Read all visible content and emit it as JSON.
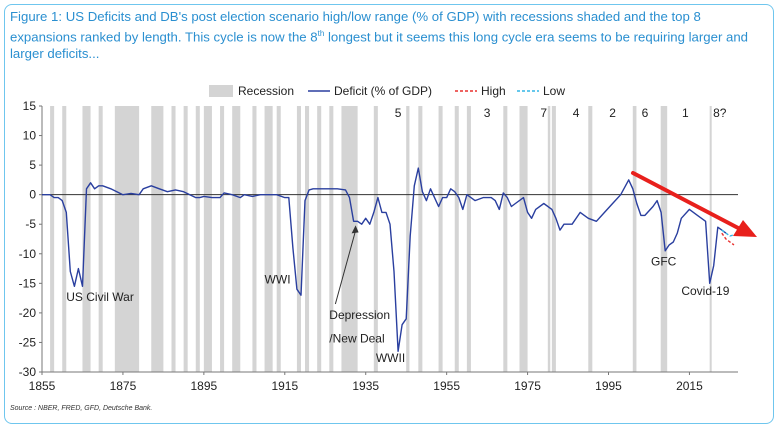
{
  "title": {
    "part1": "Figure 1: US Deficits and DB's post election scenario high/low range (% of GDP) with recessions shaded and the top 8 expansions ranked by length. This cycle is now the 8",
    "sup": "th",
    "part2": " longest but it seems this long cycle era seems to be requiring larger and larger deficits..."
  },
  "source": "Source : NBER, FRED, GFD, Deutsche Bank.",
  "colors": {
    "accent": "#2a8fd0",
    "line": "#2a3f9f",
    "high": "#e8312f",
    "low": "#33b5e5",
    "arrow": "#e8201c",
    "recession": "#d4d4d4"
  },
  "chart_data": {
    "type": "line",
    "title": "",
    "xlabel": "",
    "ylabel": "",
    "xlim": [
      1855,
      2027
    ],
    "ylim": [
      -30,
      15
    ],
    "xticks": [
      1855,
      1875,
      1895,
      1915,
      1935,
      1955,
      1975,
      1995,
      2015
    ],
    "yticks": [
      15,
      10,
      5,
      0,
      -5,
      -10,
      -15,
      -20,
      -25,
      -30
    ],
    "legend": [
      "Recession",
      "Deficit (% of GDP)",
      "High",
      "Low"
    ],
    "recessions": [
      [
        1857,
        1858
      ],
      [
        1860,
        1861
      ],
      [
        1865,
        1867
      ],
      [
        1869,
        1870
      ],
      [
        1873,
        1879
      ],
      [
        1882,
        1885
      ],
      [
        1887,
        1888
      ],
      [
        1890,
        1891
      ],
      [
        1893,
        1894
      ],
      [
        1895,
        1897
      ],
      [
        1899,
        1900
      ],
      [
        1902,
        1904
      ],
      [
        1907,
        1908
      ],
      [
        1910,
        1912
      ],
      [
        1913,
        1914
      ],
      [
        1918,
        1919
      ],
      [
        1920,
        1921
      ],
      [
        1923,
        1924
      ],
      [
        1926,
        1927
      ],
      [
        1929,
        1933
      ],
      [
        1937,
        1938
      ],
      [
        1945,
        1945.8
      ],
      [
        1948,
        1949
      ],
      [
        1953,
        1954
      ],
      [
        1957,
        1958
      ],
      [
        1960,
        1961
      ],
      [
        1969,
        1970
      ],
      [
        1973,
        1975
      ],
      [
        1980,
        1980.6
      ],
      [
        1981,
        1982
      ],
      [
        1990,
        1991
      ],
      [
        2001,
        2001.9
      ],
      [
        2007.9,
        2009.5
      ],
      [
        2020,
        2020.5
      ]
    ],
    "series": [
      {
        "name": "Deficit (% of GDP)",
        "x": [
          1855,
          1857,
          1858,
          1859,
          1860,
          1861,
          1862,
          1863,
          1864,
          1865,
          1866,
          1867,
          1868,
          1869,
          1870,
          1872,
          1875,
          1877,
          1879,
          1880,
          1882,
          1884,
          1886,
          1888,
          1890,
          1893,
          1894,
          1895,
          1897,
          1899,
          1900,
          1902,
          1904,
          1905,
          1907,
          1909,
          1911,
          1913,
          1915,
          1916,
          1917,
          1918,
          1919,
          1920,
          1921,
          1922,
          1924,
          1926,
          1928,
          1930,
          1931,
          1932,
          1933,
          1934,
          1935,
          1936,
          1937,
          1938,
          1939,
          1940,
          1941,
          1942,
          1943,
          1944,
          1945,
          1946,
          1947,
          1948,
          1949,
          1950,
          1951,
          1952,
          1953,
          1954,
          1955,
          1956,
          1957,
          1958,
          1959,
          1960,
          1961,
          1962,
          1964,
          1966,
          1967,
          1968,
          1969,
          1970,
          1971,
          1972,
          1974,
          1975,
          1976,
          1977,
          1979,
          1981,
          1982,
          1983,
          1984,
          1986,
          1988,
          1990,
          1992,
          1994,
          1996,
          1998,
          2000,
          2001,
          2002,
          2003,
          2004,
          2006,
          2007,
          2008,
          2009,
          2010,
          2011,
          2012,
          2013,
          2015,
          2017,
          2019,
          2020,
          2021,
          2022,
          2023,
          2024
        ],
        "y": [
          0,
          0,
          -0.5,
          -0.5,
          -1,
          -3,
          -13,
          -15.5,
          -12.5,
          -15.5,
          1,
          2,
          1,
          1.5,
          1.5,
          1,
          0,
          0.2,
          0,
          1,
          1.5,
          1,
          0.5,
          0.8,
          0.5,
          -0.5,
          -0.5,
          -0.3,
          -0.5,
          -0.5,
          0.3,
          0,
          -0.5,
          0,
          -0.3,
          0,
          0,
          0,
          -0.5,
          -0.5,
          -9,
          -16,
          -17,
          -1,
          0.8,
          1,
          1,
          1,
          1,
          0.8,
          -0.5,
          -4.5,
          -4.5,
          -5,
          -4,
          -5,
          -3,
          -0.5,
          -3,
          -3,
          -5,
          -13,
          -26.5,
          -22,
          -21,
          -7,
          1.5,
          4.5,
          0.5,
          -1,
          1,
          -0.5,
          -2,
          -0.5,
          -0.5,
          1,
          0.5,
          -0.5,
          -2.5,
          0,
          -0.5,
          -1,
          -0.5,
          -0.5,
          -1,
          -2.5,
          0.3,
          -0.5,
          -2,
          -1.5,
          -0.5,
          -3,
          -4,
          -2.5,
          -1.5,
          -2.5,
          -4,
          -6,
          -5,
          -5,
          -3,
          -4,
          -4.5,
          -3,
          -1.5,
          0,
          2.5,
          1,
          -1.5,
          -3.5,
          -3.5,
          -2,
          -1,
          -3,
          -9.5,
          -8.5,
          -8,
          -6.5,
          -4,
          -2.5,
          -3.5,
          -4.5,
          -15,
          -12,
          -5.5,
          -6,
          -6.5
        ]
      },
      {
        "name": "High",
        "x": [
          2023,
          2024,
          2025,
          2026
        ],
        "y": [
          -6.5,
          -7.5,
          -8,
          -8.5
        ]
      },
      {
        "name": "Low",
        "x": [
          2023,
          2024,
          2025,
          2026
        ],
        "y": [
          -6,
          -6.5,
          -7,
          -6.8
        ]
      }
    ],
    "expansion_ranks": [
      {
        "label": "5",
        "x": 1943
      },
      {
        "label": "3",
        "x": 1965
      },
      {
        "label": "7",
        "x": 1979
      },
      {
        "label": "4",
        "x": 1987
      },
      {
        "label": "2",
        "x": 1996
      },
      {
        "label": "6",
        "x": 2004
      },
      {
        "label": "1",
        "x": 2014
      },
      {
        "label": "8?",
        "x": 2022.5
      }
    ],
    "annotations": [
      {
        "text": "US Civil War",
        "x": 1861,
        "y": -18
      },
      {
        "text": "WWI",
        "x": 1910,
        "y": -15
      },
      {
        "text": "Depression",
        "x": 1926,
        "y": -21
      },
      {
        "text": "/New Deal",
        "x": 1926,
        "y": -25
      },
      {
        "text": "WWII",
        "x": 1937.5,
        "y": -28.3
      },
      {
        "text": "GFC",
        "x": 2005.5,
        "y": -12
      },
      {
        "text": "Covid-19",
        "x": 2013,
        "y": -17
      }
    ]
  }
}
